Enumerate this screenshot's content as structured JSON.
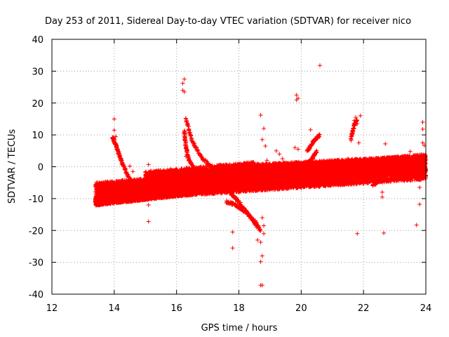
{
  "chart_data": {
    "type": "scatter",
    "title": "Day 253 of 2011, Sidereal Day-to-day VTEC variation (SDTVAR) for receiver nico",
    "xlabel": "GPS time / hours",
    "ylabel": "SDTVAR / TECUs",
    "xlim": [
      12,
      24
    ],
    "ylim": [
      -40,
      40
    ],
    "xticks": [
      12,
      14,
      16,
      18,
      20,
      22,
      24
    ],
    "yticks": [
      -40,
      -30,
      -20,
      -10,
      0,
      10,
      20,
      30,
      40
    ],
    "xtick_labels": [
      "12",
      "14",
      "16",
      "18",
      "20",
      "22",
      "24"
    ],
    "ytick_labels": [
      "-40",
      "-30",
      "-20",
      "-10",
      "0",
      "10",
      "20",
      "30",
      "40"
    ],
    "grid": true,
    "marker": "+",
    "series": [
      {
        "name": "SDTVAR",
        "color": "#ff0000",
        "bands": [
          {
            "x_start": 13.4,
            "x_end": 24.0,
            "center_start": -8.0,
            "center_end": 0.0,
            "half_width_start": 3.0,
            "half_width_end": 4.0
          },
          {
            "x_start": 13.4,
            "x_end": 19.0,
            "center_start": -11.0,
            "center_end": -4.0,
            "half_width_start": 1.2,
            "half_width_end": 2.0
          },
          {
            "x_start": 13.6,
            "x_end": 22.0,
            "center_start": -7.5,
            "center_end": -1.0,
            "half_width_start": 1.5,
            "half_width_end": 2.5
          },
          {
            "x_start": 17.8,
            "x_end": 24.0,
            "center_start": -2.0,
            "center_end": 1.0,
            "half_width_start": 2.5,
            "half_width_end": 2.5
          },
          {
            "x_start": 15.0,
            "x_end": 18.5,
            "center_start": -5.0,
            "center_end": -2.0,
            "half_width_start": 3.5,
            "half_width_end": 3.5
          }
        ],
        "arcs": [
          {
            "x": [
              13.95,
              14.05,
              14.15,
              14.3,
              14.5,
              14.7,
              14.9,
              15.1
            ],
            "y": [
              9,
              7,
              4,
              0,
              -4,
              -7,
              -9,
              -10
            ]
          },
          {
            "x": [
              16.3,
              16.5,
              16.8,
              17.1,
              17.5,
              17.9
            ],
            "y": [
              15,
              8,
              3,
              0,
              -2,
              -3
            ]
          },
          {
            "x": [
              16.25,
              16.3,
              16.4,
              16.6
            ],
            "y": [
              11,
              6,
              2,
              -1
            ]
          },
          {
            "x": [
              17.6,
              17.9,
              18.2,
              18.5,
              18.7
            ],
            "y": [
              -11,
              -12,
              -14,
              -17,
              -20
            ]
          },
          {
            "x": [
              17.7,
              18.0,
              18.3,
              18.6
            ],
            "y": [
              -8,
              -11,
              -15,
              -19
            ]
          },
          {
            "x": [
              20.2,
              20.4,
              20.6
            ],
            "y": [
              5,
              8,
              10
            ]
          },
          {
            "x": [
              20.0,
              20.3,
              20.5
            ],
            "y": [
              -1,
              2,
              5
            ]
          },
          {
            "x": [
              21.6,
              21.7,
              21.8
            ],
            "y": [
              9,
              13,
              15
            ]
          },
          {
            "x": [
              22.3,
              22.6,
              23.0
            ],
            "y": [
              -6,
              -3,
              -1
            ]
          }
        ],
        "outliers": [
          [
            14.0,
            15
          ],
          [
            14.0,
            11.5
          ],
          [
            14.05,
            9.5
          ],
          [
            13.95,
            8.8
          ],
          [
            14.5,
            0.2
          ],
          [
            14.6,
            -1.5
          ],
          [
            15.1,
            0.7
          ],
          [
            15.1,
            -12
          ],
          [
            15.1,
            -17.2
          ],
          [
            16.2,
            24
          ],
          [
            16.25,
            27.5
          ],
          [
            16.2,
            26.2
          ],
          [
            16.25,
            23.5
          ],
          [
            16.3,
            3.3
          ],
          [
            16.4,
            -7
          ],
          [
            17.8,
            -20.5
          ],
          [
            17.8,
            -25.5
          ],
          [
            18.7,
            16.2
          ],
          [
            18.8,
            12
          ],
          [
            18.75,
            8.5
          ],
          [
            18.85,
            6.5
          ],
          [
            18.9,
            2
          ],
          [
            18.6,
            -23
          ],
          [
            18.7,
            -23.7
          ],
          [
            18.75,
            -28
          ],
          [
            18.7,
            -29.8
          ],
          [
            18.7,
            -37.2
          ],
          [
            18.75,
            -37.2
          ],
          [
            18.8,
            -21
          ],
          [
            18.8,
            -18.5
          ],
          [
            18.75,
            -16
          ],
          [
            19.2,
            5
          ],
          [
            19.3,
            4
          ],
          [
            19.4,
            2.5
          ],
          [
            19.85,
            22.5
          ],
          [
            19.9,
            21.5
          ],
          [
            19.85,
            21
          ],
          [
            19.8,
            6
          ],
          [
            19.9,
            5.5
          ],
          [
            20.3,
            11.6
          ],
          [
            20.6,
            31.8
          ],
          [
            21.0,
            1.8
          ],
          [
            21.5,
            2.5
          ],
          [
            21.6,
            8.2
          ],
          [
            21.7,
            14.5
          ],
          [
            21.75,
            15.5
          ],
          [
            21.8,
            13.5
          ],
          [
            21.9,
            16
          ],
          [
            21.85,
            7.5
          ],
          [
            21.8,
            -21
          ],
          [
            22.6,
            -8
          ],
          [
            22.6,
            -9.5
          ],
          [
            22.7,
            7.2
          ],
          [
            22.65,
            -20.8
          ],
          [
            23.5,
            4.8
          ],
          [
            23.7,
            -18.3
          ],
          [
            23.8,
            -6.5
          ],
          [
            23.8,
            -11.8
          ],
          [
            23.9,
            14
          ],
          [
            23.9,
            11.8
          ],
          [
            23.95,
            6.7
          ],
          [
            23.9,
            7.5
          ]
        ]
      }
    ]
  }
}
